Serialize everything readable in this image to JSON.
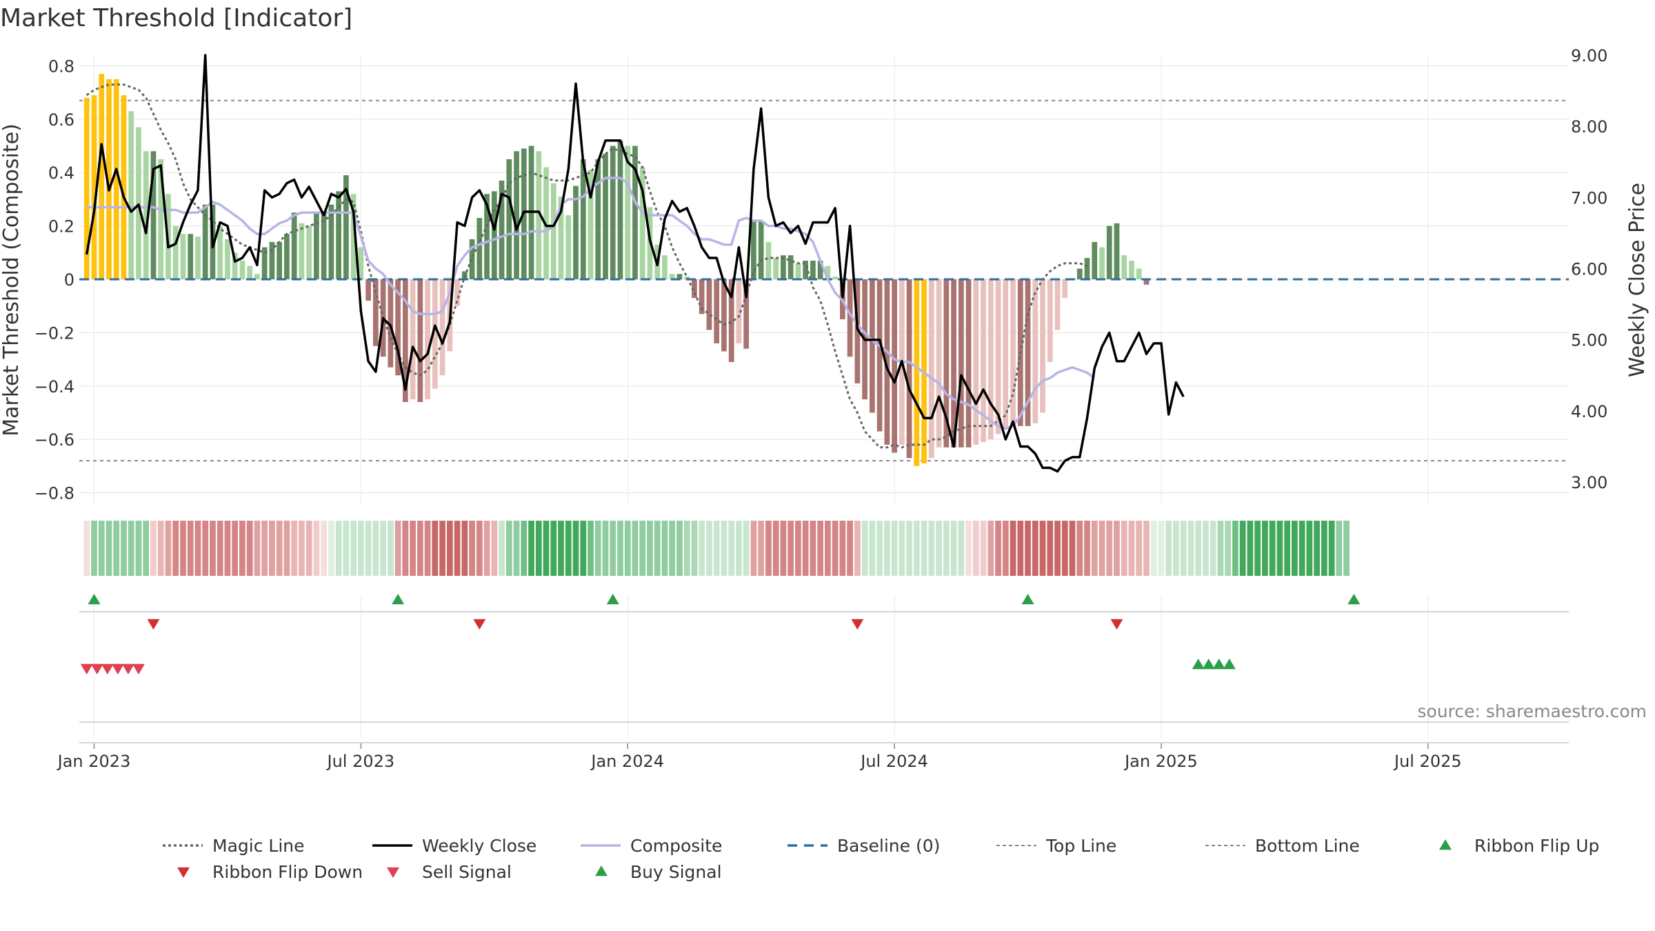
{
  "chart_data": {
    "type": "bar",
    "title": "Market Threshold [Indicator]",
    "ylabel": "Market Threshold (Composite)",
    "y2label": "Weekly Close Price",
    "ylim": [
      -0.84,
      0.84
    ],
    "y2lim": [
      2.7,
      9.0
    ],
    "y_ticks": [
      0.8,
      0.6,
      0.4,
      0.2,
      0,
      -0.2,
      -0.4,
      -0.6,
      -0.8
    ],
    "y_tick_labels": [
      "0.8",
      "0.6",
      "0.4",
      "0.2",
      "0",
      "−0.2",
      "−0.4",
      "−0.6",
      "−0.8"
    ],
    "y2_ticks": [
      9,
      8,
      7,
      6,
      5,
      4,
      3
    ],
    "y2_tick_labels": [
      "9.00",
      "8.00",
      "7.00",
      "6.00",
      "5.00",
      "4.00",
      "3.00"
    ],
    "x_tick_labels": [
      "Jan 2023",
      "Jul 2023",
      "Jan 2024",
      "Jul 2024",
      "Jan 2025",
      "Jul 2025"
    ],
    "x_tick_weeks": [
      1,
      37,
      73,
      109,
      145,
      181
    ],
    "week_count": 200,
    "top_line": 0.67,
    "bottom_line": -0.68,
    "baseline": 0,
    "grid": true,
    "composite_bars": [
      0.68,
      0.69,
      0.77,
      0.75,
      0.75,
      0.69,
      0.63,
      0.57,
      0.48,
      0.48,
      0.45,
      0.32,
      0.2,
      0.17,
      0.17,
      0.16,
      0.28,
      0.28,
      0.2,
      0.15,
      0.1,
      0.07,
      0.05,
      0.02,
      0.12,
      0.14,
      0.14,
      0.17,
      0.25,
      0.21,
      0.2,
      0.25,
      0.25,
      0.28,
      0.33,
      0.39,
      0.32,
      0.12,
      -0.08,
      -0.25,
      -0.29,
      -0.33,
      -0.36,
      -0.46,
      -0.45,
      -0.46,
      -0.45,
      -0.41,
      -0.36,
      -0.27,
      -0.1,
      0.03,
      0.15,
      0.23,
      0.32,
      0.33,
      0.37,
      0.45,
      0.48,
      0.49,
      0.5,
      0.48,
      0.42,
      0.36,
      0.31,
      0.24,
      0.35,
      0.45,
      0.41,
      0.45,
      0.47,
      0.5,
      0.52,
      0.5,
      0.5,
      0.42,
      0.27,
      0.13,
      0.09,
      0.02,
      0.02,
      0.01,
      -0.07,
      -0.13,
      -0.19,
      -0.24,
      -0.27,
      -0.31,
      -0.24,
      -0.26,
      0.22,
      0.22,
      0.14,
      0.08,
      0.09,
      0.09,
      0.06,
      0.07,
      0.07,
      0.07,
      0.05,
      0.01,
      -0.15,
      -0.29,
      -0.39,
      -0.45,
      -0.5,
      -0.57,
      -0.62,
      -0.65,
      -0.62,
      -0.67,
      -0.7,
      -0.69,
      -0.67,
      -0.63,
      -0.63,
      -0.63,
      -0.63,
      -0.63,
      -0.62,
      -0.61,
      -0.6,
      -0.58,
      -0.56,
      -0.55,
      -0.55,
      -0.55,
      -0.54,
      -0.5,
      -0.31,
      -0.19,
      -0.07,
      0,
      0.04,
      0.08,
      0.14,
      0.12,
      0.2,
      0.21,
      0.09,
      0.07,
      0.04,
      -0.02
    ],
    "weekly_close": [
      6.2,
      6.8,
      7.75,
      7.1,
      7.4,
      7.0,
      6.8,
      6.9,
      6.5,
      7.4,
      7.45,
      6.3,
      6.35,
      6.65,
      6.9,
      7.1,
      9.0,
      6.3,
      6.65,
      6.6,
      6.1,
      6.15,
      6.3,
      6.05,
      7.1,
      7.0,
      7.05,
      7.2,
      7.25,
      7.0,
      7.15,
      6.95,
      6.75,
      7.05,
      7.0,
      7.12,
      6.8,
      5.4,
      4.7,
      4.55,
      5.3,
      5.2,
      4.85,
      4.3,
      4.9,
      4.7,
      4.8,
      5.2,
      4.95,
      5.25,
      6.65,
      6.6,
      7.0,
      7.1,
      6.9,
      6.55,
      7.05,
      7.0,
      6.55,
      6.8,
      6.8,
      6.8,
      6.6,
      6.6,
      6.8,
      7.4,
      8.6,
      7.5,
      7.0,
      7.5,
      7.8,
      7.8,
      7.8,
      7.5,
      7.4,
      7.1,
      6.4,
      6.05,
      6.7,
      6.95,
      6.8,
      6.85,
      6.6,
      6.3,
      6.15,
      6.15,
      5.8,
      5.6,
      6.3,
      5.6,
      7.4,
      8.25,
      7.0,
      6.6,
      6.65,
      6.5,
      6.6,
      6.35,
      6.65,
      6.65,
      6.65,
      6.85,
      5.6,
      6.6,
      5.15,
      5.0,
      5.0,
      5.0,
      4.6,
      4.4,
      4.7,
      4.3,
      4.1,
      3.9,
      3.9,
      4.2,
      3.9,
      3.5,
      4.5,
      4.3,
      4.1,
      4.3,
      4.1,
      3.95,
      3.6,
      3.85,
      3.5,
      3.5,
      3.4,
      3.2,
      3.2,
      3.15,
      3.3,
      3.35,
      3.35,
      3.9,
      4.6,
      4.9,
      5.1,
      4.7,
      4.7,
      4.9,
      5.1,
      4.8,
      4.95,
      4.95,
      3.95,
      4.4,
      4.2
    ],
    "composite_line": [
      0.27,
      0.27,
      0.27,
      0.27,
      0.27,
      0.27,
      0.27,
      0.27,
      0.27,
      0.27,
      0.26,
      0.26,
      0.26,
      0.25,
      0.25,
      0.25,
      0.27,
      0.29,
      0.28,
      0.26,
      0.24,
      0.22,
      0.19,
      0.17,
      0.17,
      0.19,
      0.21,
      0.22,
      0.24,
      0.25,
      0.25,
      0.25,
      0.25,
      0.25,
      0.25,
      0.25,
      0.25,
      0.16,
      0.07,
      0.04,
      0.02,
      -0.02,
      -0.05,
      -0.08,
      -0.12,
      -0.13,
      -0.13,
      -0.13,
      -0.12,
      -0.05,
      0.05,
      0.09,
      0.12,
      0.13,
      0.14,
      0.15,
      0.16,
      0.17,
      0.17,
      0.17,
      0.18,
      0.18,
      0.18,
      0.2,
      0.28,
      0.3,
      0.3,
      0.31,
      0.34,
      0.36,
      0.38,
      0.38,
      0.38,
      0.36,
      0.29,
      0.25,
      0.24,
      0.24,
      0.24,
      0.24,
      0.22,
      0.2,
      0.17,
      0.15,
      0.15,
      0.14,
      0.13,
      0.13,
      0.22,
      0.23,
      0.22,
      0.22,
      0.2,
      0.2,
      0.19,
      0.19,
      0.18,
      0.17,
      0.14,
      0.07,
      0.0,
      -0.05,
      -0.08,
      -0.13,
      -0.17,
      -0.2,
      -0.23,
      -0.25,
      -0.27,
      -0.3,
      -0.31,
      -0.31,
      -0.33,
      -0.35,
      -0.37,
      -0.39,
      -0.43,
      -0.45,
      -0.46,
      -0.47,
      -0.49,
      -0.51,
      -0.53,
      -0.55,
      -0.56,
      -0.55,
      -0.51,
      -0.46,
      -0.41,
      -0.38,
      -0.37,
      -0.35,
      -0.34,
      -0.33,
      -0.34,
      -0.35,
      -0.37
    ],
    "magic_line": [
      0.69,
      0.71,
      0.72,
      0.73,
      0.73,
      0.73,
      0.72,
      0.71,
      0.68,
      0.62,
      0.56,
      0.51,
      0.45,
      0.36,
      0.3,
      0.27,
      0.24,
      0.22,
      0.19,
      0.17,
      0.15,
      0.13,
      0.12,
      0.11,
      0.1,
      0.11,
      0.14,
      0.17,
      0.18,
      0.19,
      0.2,
      0.21,
      0.22,
      0.24,
      0.27,
      0.3,
      0.29,
      0.18,
      0.05,
      -0.05,
      -0.14,
      -0.22,
      -0.28,
      -0.33,
      -0.35,
      -0.36,
      -0.34,
      -0.29,
      -0.24,
      -0.17,
      -0.08,
      0.01,
      0.08,
      0.14,
      0.2,
      0.26,
      0.3,
      0.36,
      0.38,
      0.39,
      0.4,
      0.39,
      0.38,
      0.37,
      0.37,
      0.37,
      0.38,
      0.39,
      0.4,
      0.44,
      0.47,
      0.49,
      0.48,
      0.47,
      0.46,
      0.42,
      0.33,
      0.25,
      0.2,
      0.12,
      0.06,
      0.01,
      -0.05,
      -0.11,
      -0.13,
      -0.15,
      -0.17,
      -0.16,
      -0.14,
      -0.06,
      0.03,
      0.07,
      0.08,
      0.08,
      0.08,
      0.07,
      0.06,
      0.06,
      -0.03,
      -0.08,
      -0.17,
      -0.27,
      -0.36,
      -0.45,
      -0.5,
      -0.57,
      -0.6,
      -0.63,
      -0.63,
      -0.62,
      -0.63,
      -0.62,
      -0.62,
      -0.62,
      -0.6,
      -0.6,
      -0.59,
      -0.57,
      -0.56,
      -0.55,
      -0.55,
      -0.55,
      -0.55,
      -0.53,
      -0.51,
      -0.43,
      -0.28,
      -0.13,
      -0.05,
      0.0,
      0.03,
      0.05,
      0.06,
      0.06,
      0.06,
      0.05
    ],
    "ribbon_colors": [
      "#f5dede",
      "#8fcc9f",
      "#8fcc9f",
      "#8fcc9f",
      "#8fcc9f",
      "#8fcc9f",
      "#8fcc9f",
      "#8fcc9f",
      "#8fcc9f",
      "#f2cccc",
      "#e9b4b4",
      "#e0a1a1",
      "#d58585",
      "#d58585",
      "#d58585",
      "#d58585",
      "#d58585",
      "#d58585",
      "#d58585",
      "#d58585",
      "#d58585",
      "#d58585",
      "#d58585",
      "#e0a1a1",
      "#e0a1a1",
      "#e0a1a1",
      "#e0a1a1",
      "#e0a1a1",
      "#e9b4b4",
      "#e9b4b4",
      "#e9b4b4",
      "#f2cccc",
      "#f5dede",
      "#dff0e3",
      "#c8e6cf",
      "#c8e6cf",
      "#c8e6cf",
      "#c8e6cf",
      "#c8e6cf",
      "#c8e6cf",
      "#c8e6cf",
      "#c8e6cf",
      "#d9a0a0",
      "#d58585",
      "#d58585",
      "#d58585",
      "#d58585",
      "#c86767",
      "#c86767",
      "#c86767",
      "#c86767",
      "#c86767",
      "#d58585",
      "#d58585",
      "#e0a1a1",
      "#e9b4b4",
      "#c8e6cf",
      "#8fcc9f",
      "#8fcc9f",
      "#6fbf84",
      "#41a85c",
      "#41a85c",
      "#41a85c",
      "#41a85c",
      "#41a85c",
      "#41a85c",
      "#41a85c",
      "#41a85c",
      "#6fbf84",
      "#8fcc9f",
      "#8fcc9f",
      "#8fcc9f",
      "#8fcc9f",
      "#8fcc9f",
      "#8fcc9f",
      "#8fcc9f",
      "#8fcc9f",
      "#8fcc9f",
      "#8fcc9f",
      "#8fcc9f",
      "#8fcc9f",
      "#a8d8b4",
      "#a8d8b4",
      "#c8e6cf",
      "#c8e6cf",
      "#c8e6cf",
      "#c8e6cf",
      "#c8e6cf",
      "#c8e6cf",
      "#c8e6cf",
      "#e0a1a1",
      "#e0a1a1",
      "#d58585",
      "#d58585",
      "#d58585",
      "#d58585",
      "#d58585",
      "#d58585",
      "#d58585",
      "#d58585",
      "#d58585",
      "#d58585",
      "#d58585",
      "#d58585",
      "#e9b4b4",
      "#c8e6cf",
      "#c8e6cf",
      "#c8e6cf",
      "#c8e6cf",
      "#c8e6cf",
      "#c8e6cf",
      "#c8e6cf",
      "#c8e6cf",
      "#c8e6cf",
      "#c8e6cf",
      "#c8e6cf",
      "#c8e6cf",
      "#c8e6cf",
      "#c8e6cf",
      "#f5dede",
      "#f2cccc",
      "#f2cccc",
      "#e0a1a1",
      "#d58585",
      "#d58585",
      "#c86767",
      "#c86767",
      "#c86767",
      "#c86767",
      "#c86767",
      "#c86767",
      "#c86767",
      "#c86767",
      "#c86767",
      "#d58585",
      "#d58585",
      "#e0a1a1",
      "#e0a1a1",
      "#e0a1a1",
      "#e0a1a1",
      "#e9b4b4",
      "#e9b4b4",
      "#e9b4b4",
      "#e9b4b4",
      "#dff0e3",
      "#dff0e3",
      "#c8e6cf",
      "#c8e6cf",
      "#c8e6cf",
      "#c8e6cf",
      "#c8e6cf",
      "#c8e6cf",
      "#c8e6cf",
      "#a8d8b4",
      "#a8d8b4",
      "#6fbf84",
      "#41a85c",
      "#41a85c",
      "#41a85c",
      "#41a85c",
      "#41a85c",
      "#41a85c",
      "#41a85c",
      "#41a85c",
      "#41a85c",
      "#41a85c",
      "#41a85c",
      "#41a85c",
      "#41a85c",
      "#8fcc9f",
      "#8fcc9f"
    ],
    "ribbon_flip_up_weeks": [
      1,
      42,
      71,
      127,
      171
    ],
    "ribbon_flip_down_weeks": [
      9,
      53,
      104,
      139
    ],
    "sell_signal_weeks": [
      0,
      1.4,
      2.8,
      4.2,
      5.6,
      7
    ],
    "buy_signal_weeks": [
      150,
      151.4,
      152.8,
      154.2
    ],
    "legend_position": "bottom",
    "source_text": "source: sharemaestro.com"
  },
  "legend": [
    {
      "label": "Magic Line",
      "kind": "dotted",
      "color": "#666666"
    },
    {
      "label": "Weekly Close",
      "kind": "solid",
      "color": "#000000"
    },
    {
      "label": "Composite",
      "kind": "solid",
      "color": "#b8b4e6"
    },
    {
      "label": "Baseline (0)",
      "kind": "dashed",
      "color": "#2e6d9e"
    },
    {
      "label": "Top Line",
      "kind": "dashed-thin",
      "color": "#888888"
    },
    {
      "label": "Bottom Line",
      "kind": "dashed-thin",
      "color": "#888888"
    },
    {
      "label": "Ribbon Flip Up",
      "kind": "tri-up",
      "color": "#2c9e47"
    },
    {
      "label": "Ribbon Flip Down",
      "kind": "tri-down",
      "color": "#d23030"
    },
    {
      "label": "Sell Signal",
      "kind": "tri-down",
      "color": "#e04050"
    },
    {
      "label": "Buy Signal",
      "kind": "tri-up",
      "color": "#2c9e47"
    }
  ],
  "colors": {
    "bar_green_dark": "#5e8c5e",
    "bar_green_light": "#a8d5a2",
    "bar_red_dark": "#a97370",
    "bar_red_light": "#e8c0bc",
    "bar_gold": "#ffc20e"
  }
}
